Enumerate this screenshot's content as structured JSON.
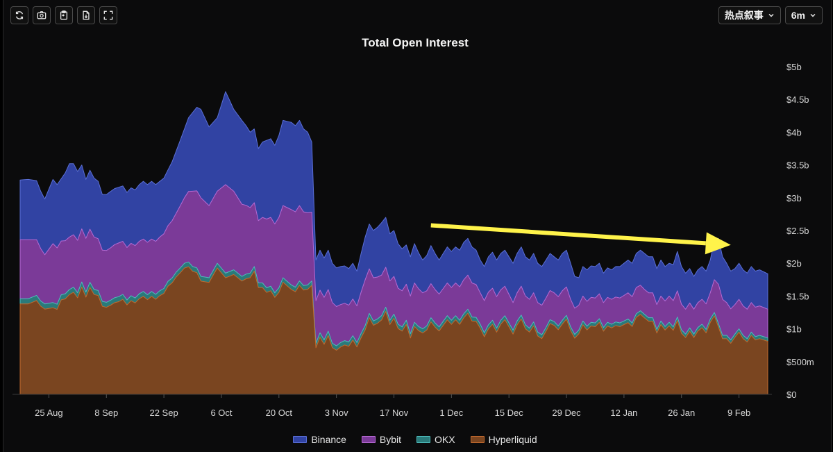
{
  "toolbar": {
    "icons": [
      "refresh-icon",
      "camera-icon",
      "clipboard-icon",
      "download-file-icon",
      "fullscreen-icon"
    ]
  },
  "controls": {
    "narrative_select": "热点叙事",
    "range_select": "6m"
  },
  "chart_data": {
    "type": "area",
    "stacked": true,
    "title": "Total Open Interest",
    "xlabel": "",
    "ylabel": "",
    "ylim": [
      0,
      5000000000
    ],
    "y_ticks": [
      "$0",
      "$500m",
      "$1b",
      "$1.5b",
      "$2b",
      "$2.5b",
      "$3b",
      "$3.5b",
      "$4b",
      "$4.5b",
      "$5b"
    ],
    "x_tick_labels": [
      "25 Aug",
      "8 Sep",
      "22 Sep",
      "6 Oct",
      "20 Oct",
      "3 Nov",
      "17 Nov",
      "1 Dec",
      "15 Dec",
      "29 Dec",
      "12 Jan",
      "26 Jan",
      "9 Feb"
    ],
    "x_tick_day_index": [
      7,
      21,
      35,
      49,
      63,
      77,
      91,
      105,
      119,
      133,
      147,
      161,
      175
    ],
    "day_count": 183,
    "totals_anchors_bn": [
      [
        0,
        3.27
      ],
      [
        2,
        3.28
      ],
      [
        4,
        3.26
      ],
      [
        5,
        3.1
      ],
      [
        6,
        2.98
      ],
      [
        8,
        3.28
      ],
      [
        9,
        3.2
      ],
      [
        11,
        3.38
      ],
      [
        12,
        3.52
      ],
      [
        13,
        3.52
      ],
      [
        14,
        3.4
      ],
      [
        15,
        3.5
      ],
      [
        16,
        3.28
      ],
      [
        17,
        3.42
      ],
      [
        18,
        3.3
      ],
      [
        19,
        3.25
      ],
      [
        20,
        3.05
      ],
      [
        21,
        3.05
      ],
      [
        23,
        3.14
      ],
      [
        25,
        3.18
      ],
      [
        26,
        3.08
      ],
      [
        27,
        3.15
      ],
      [
        28,
        3.12
      ],
      [
        29,
        3.2
      ],
      [
        30,
        3.25
      ],
      [
        31,
        3.2
      ],
      [
        32,
        3.25
      ],
      [
        33,
        3.2
      ],
      [
        34,
        3.25
      ],
      [
        35,
        3.3
      ],
      [
        37,
        3.55
      ],
      [
        39,
        3.88
      ],
      [
        41,
        4.22
      ],
      [
        43,
        4.38
      ],
      [
        44,
        4.35
      ],
      [
        46,
        4.08
      ],
      [
        48,
        4.22
      ],
      [
        50,
        4.62
      ],
      [
        52,
        4.35
      ],
      [
        54,
        4.18
      ],
      [
        55,
        4.1
      ],
      [
        56,
        4.0
      ],
      [
        57,
        4.05
      ],
      [
        58,
        3.75
      ],
      [
        59,
        3.85
      ],
      [
        61,
        3.9
      ],
      [
        62,
        3.8
      ],
      [
        63,
        3.95
      ],
      [
        64,
        4.18
      ],
      [
        66,
        4.15
      ],
      [
        67,
        4.1
      ],
      [
        68,
        4.18
      ],
      [
        69,
        4.05
      ],
      [
        70,
        4.0
      ],
      [
        71,
        3.85
      ],
      [
        72,
        2.05
      ],
      [
        73,
        2.2
      ],
      [
        74,
        2.08
      ],
      [
        75,
        2.2
      ],
      [
        76,
        2.0
      ],
      [
        77,
        1.93
      ],
      [
        78,
        1.95
      ],
      [
        79,
        1.96
      ],
      [
        80,
        1.92
      ],
      [
        81,
        2.0
      ],
      [
        82,
        1.88
      ],
      [
        83,
        2.15
      ],
      [
        84,
        2.4
      ],
      [
        85,
        2.6
      ],
      [
        86,
        2.5
      ],
      [
        87,
        2.55
      ],
      [
        88,
        2.62
      ],
      [
        89,
        2.7
      ],
      [
        90,
        2.45
      ],
      [
        91,
        2.5
      ],
      [
        92,
        2.3
      ],
      [
        93,
        2.22
      ],
      [
        94,
        2.28
      ],
      [
        95,
        2.1
      ],
      [
        96,
        2.3
      ],
      [
        97,
        2.16
      ],
      [
        98,
        2.05
      ],
      [
        99,
        2.12
      ],
      [
        100,
        2.27
      ],
      [
        101,
        2.15
      ],
      [
        102,
        2.05
      ],
      [
        103,
        2.15
      ],
      [
        104,
        2.25
      ],
      [
        105,
        2.18
      ],
      [
        106,
        2.25
      ],
      [
        107,
        2.2
      ],
      [
        108,
        2.32
      ],
      [
        109,
        2.38
      ],
      [
        110,
        2.25
      ],
      [
        111,
        2.2
      ],
      [
        112,
        2.05
      ],
      [
        113,
        1.95
      ],
      [
        114,
        2.1
      ],
      [
        115,
        2.17
      ],
      [
        116,
        2.05
      ],
      [
        117,
        2.15
      ],
      [
        118,
        2.2
      ],
      [
        119,
        2.1
      ],
      [
        120,
        2.0
      ],
      [
        121,
        2.15
      ],
      [
        122,
        2.25
      ],
      [
        123,
        2.1
      ],
      [
        124,
        2.05
      ],
      [
        125,
        2.15
      ],
      [
        126,
        2.0
      ],
      [
        127,
        1.95
      ],
      [
        128,
        2.05
      ],
      [
        129,
        2.15
      ],
      [
        130,
        2.1
      ],
      [
        131,
        2.05
      ],
      [
        132,
        2.15
      ],
      [
        133,
        2.2
      ],
      [
        134,
        2.0
      ],
      [
        135,
        1.8
      ],
      [
        136,
        1.78
      ],
      [
        137,
        1.95
      ],
      [
        138,
        1.9
      ],
      [
        139,
        1.96
      ],
      [
        140,
        1.95
      ],
      [
        141,
        2.0
      ],
      [
        142,
        1.85
      ],
      [
        143,
        1.93
      ],
      [
        144,
        1.9
      ],
      [
        145,
        1.95
      ],
      [
        146,
        1.95
      ],
      [
        147,
        2.0
      ],
      [
        148,
        2.05
      ],
      [
        149,
        2.0
      ],
      [
        150,
        2.15
      ],
      [
        151,
        2.2
      ],
      [
        152,
        2.15
      ],
      [
        153,
        2.1
      ],
      [
        154,
        2.1
      ],
      [
        155,
        1.92
      ],
      [
        156,
        2.05
      ],
      [
        157,
        1.95
      ],
      [
        158,
        2.0
      ],
      [
        159,
        1.98
      ],
      [
        160,
        2.18
      ],
      [
        161,
        1.95
      ],
      [
        162,
        1.85
      ],
      [
        163,
        1.92
      ],
      [
        164,
        1.8
      ],
      [
        165,
        1.9
      ],
      [
        166,
        1.95
      ],
      [
        167,
        1.88
      ],
      [
        168,
        2.05
      ],
      [
        169,
        2.35
      ],
      [
        170,
        2.38
      ],
      [
        171,
        2.1
      ],
      [
        172,
        2.0
      ],
      [
        173,
        1.88
      ],
      [
        174,
        1.92
      ],
      [
        175,
        2.0
      ],
      [
        176,
        1.9
      ],
      [
        177,
        1.85
      ],
      [
        178,
        1.95
      ],
      [
        179,
        1.88
      ],
      [
        180,
        1.9
      ],
      [
        181,
        1.87
      ],
      [
        182,
        1.84
      ]
    ],
    "series": [
      {
        "name": "Binance",
        "color": "#3143a3",
        "stroke": "#5a6fd6",
        "anchors_bn": [
          [
            0,
            0.91
          ],
          [
            2,
            0.92
          ],
          [
            4,
            0.9
          ],
          [
            6,
            0.85
          ],
          [
            8,
            0.98
          ],
          [
            10,
            0.95
          ],
          [
            12,
            1.12
          ],
          [
            14,
            1.05
          ],
          [
            16,
            0.9
          ],
          [
            18,
            0.9
          ],
          [
            20,
            0.85
          ],
          [
            22,
            0.86
          ],
          [
            24,
            0.85
          ],
          [
            26,
            0.84
          ],
          [
            28,
            0.85
          ],
          [
            30,
            0.88
          ],
          [
            32,
            0.88
          ],
          [
            34,
            0.85
          ],
          [
            36,
            0.85
          ],
          [
            38,
            0.95
          ],
          [
            40,
            1.05
          ],
          [
            42,
            1.2
          ],
          [
            44,
            1.35
          ],
          [
            46,
            1.2
          ],
          [
            48,
            1.12
          ],
          [
            50,
            1.42
          ],
          [
            52,
            1.25
          ],
          [
            54,
            1.28
          ],
          [
            56,
            1.15
          ],
          [
            58,
            1.1
          ],
          [
            60,
            1.2
          ],
          [
            62,
            1.2
          ],
          [
            64,
            1.3
          ],
          [
            66,
            1.33
          ],
          [
            68,
            1.3
          ],
          [
            70,
            1.23
          ],
          [
            71,
            1.07
          ],
          [
            72,
            0.62
          ],
          [
            74,
            0.6
          ],
          [
            76,
            0.6
          ],
          [
            78,
            0.58
          ],
          [
            80,
            0.56
          ],
          [
            82,
            0.53
          ],
          [
            84,
            0.65
          ],
          [
            86,
            0.72
          ],
          [
            88,
            0.8
          ],
          [
            90,
            0.72
          ],
          [
            92,
            0.68
          ],
          [
            94,
            0.6
          ],
          [
            96,
            0.6
          ],
          [
            98,
            0.5
          ],
          [
            100,
            0.58
          ],
          [
            102,
            0.52
          ],
          [
            104,
            0.55
          ],
          [
            106,
            0.55
          ],
          [
            108,
            0.57
          ],
          [
            110,
            0.55
          ],
          [
            112,
            0.5
          ],
          [
            114,
            0.54
          ],
          [
            116,
            0.56
          ],
          [
            118,
            0.55
          ],
          [
            120,
            0.6
          ],
          [
            122,
            0.6
          ],
          [
            124,
            0.6
          ],
          [
            126,
            0.6
          ],
          [
            128,
            0.58
          ],
          [
            130,
            0.55
          ],
          [
            132,
            0.57
          ],
          [
            134,
            0.55
          ],
          [
            136,
            0.42
          ],
          [
            138,
            0.48
          ],
          [
            140,
            0.48
          ],
          [
            142,
            0.45
          ],
          [
            144,
            0.45
          ],
          [
            146,
            0.48
          ],
          [
            148,
            0.5
          ],
          [
            150,
            0.52
          ],
          [
            152,
            0.55
          ],
          [
            154,
            0.55
          ],
          [
            156,
            0.55
          ],
          [
            158,
            0.5
          ],
          [
            160,
            0.6
          ],
          [
            162,
            0.55
          ],
          [
            164,
            0.5
          ],
          [
            166,
            0.5
          ],
          [
            168,
            0.5
          ],
          [
            170,
            0.7
          ],
          [
            172,
            0.6
          ],
          [
            174,
            0.55
          ],
          [
            176,
            0.55
          ],
          [
            178,
            0.55
          ],
          [
            180,
            0.55
          ],
          [
            182,
            0.54
          ]
        ]
      },
      {
        "name": "Bybit",
        "color": "#7b3a98",
        "stroke": "#b66ad3",
        "anchors_bn": [
          [
            0,
            0.9
          ],
          [
            2,
            0.9
          ],
          [
            4,
            0.85
          ],
          [
            6,
            0.75
          ],
          [
            8,
            0.9
          ],
          [
            10,
            0.82
          ],
          [
            12,
            0.8
          ],
          [
            14,
            0.8
          ],
          [
            16,
            0.82
          ],
          [
            18,
            0.8
          ],
          [
            20,
            0.78
          ],
          [
            22,
            0.8
          ],
          [
            24,
            0.82
          ],
          [
            26,
            0.8
          ],
          [
            28,
            0.8
          ],
          [
            30,
            0.8
          ],
          [
            32,
            0.8
          ],
          [
            34,
            0.82
          ],
          [
            36,
            0.85
          ],
          [
            38,
            0.9
          ],
          [
            40,
            1.0
          ],
          [
            42,
            1.15
          ],
          [
            44,
            1.2
          ],
          [
            46,
            1.1
          ],
          [
            48,
            1.1
          ],
          [
            50,
            1.35
          ],
          [
            52,
            1.2
          ],
          [
            54,
            1.1
          ],
          [
            56,
            1.0
          ],
          [
            58,
            0.95
          ],
          [
            60,
            1.05
          ],
          [
            62,
            1.05
          ],
          [
            64,
            1.1
          ],
          [
            66,
            1.15
          ],
          [
            68,
            1.15
          ],
          [
            70,
            1.1
          ],
          [
            71,
            1.05
          ],
          [
            72,
            0.65
          ],
          [
            74,
            0.65
          ],
          [
            76,
            0.62
          ],
          [
            78,
            0.58
          ],
          [
            80,
            0.56
          ],
          [
            82,
            0.56
          ],
          [
            84,
            0.7
          ],
          [
            86,
            0.66
          ],
          [
            88,
            0.62
          ],
          [
            90,
            0.6
          ],
          [
            92,
            0.55
          ],
          [
            94,
            0.55
          ],
          [
            96,
            0.6
          ],
          [
            98,
            0.55
          ],
          [
            100,
            0.52
          ],
          [
            102,
            0.5
          ],
          [
            104,
            0.5
          ],
          [
            106,
            0.5
          ],
          [
            108,
            0.52
          ],
          [
            110,
            0.52
          ],
          [
            112,
            0.48
          ],
          [
            114,
            0.5
          ],
          [
            116,
            0.48
          ],
          [
            118,
            0.45
          ],
          [
            120,
            0.42
          ],
          [
            122,
            0.44
          ],
          [
            124,
            0.44
          ],
          [
            126,
            0.45
          ],
          [
            128,
            0.45
          ],
          [
            130,
            0.44
          ],
          [
            132,
            0.45
          ],
          [
            134,
            0.42
          ],
          [
            136,
            0.38
          ],
          [
            138,
            0.38
          ],
          [
            140,
            0.38
          ],
          [
            142,
            0.38
          ],
          [
            144,
            0.38
          ],
          [
            146,
            0.38
          ],
          [
            148,
            0.4
          ],
          [
            150,
            0.4
          ],
          [
            152,
            0.38
          ],
          [
            154,
            0.38
          ],
          [
            156,
            0.38
          ],
          [
            158,
            0.4
          ],
          [
            160,
            0.4
          ],
          [
            162,
            0.38
          ],
          [
            164,
            0.38
          ],
          [
            166,
            0.38
          ],
          [
            168,
            0.4
          ],
          [
            170,
            0.6
          ],
          [
            172,
            0.5
          ],
          [
            174,
            0.45
          ],
          [
            176,
            0.45
          ],
          [
            178,
            0.45
          ],
          [
            180,
            0.45
          ],
          [
            182,
            0.44
          ]
        ]
      },
      {
        "name": "OKX",
        "color": "#2a7a7a",
        "stroke": "#4ebcbc",
        "anchors_bn": [
          [
            0,
            0.08
          ],
          [
            182,
            0.05
          ]
        ]
      },
      {
        "name": "Hyperliquid",
        "color": "#7a4520",
        "stroke": "#c26a2e"
      }
    ],
    "annotations": [
      {
        "type": "arrow",
        "color": "#fff34a",
        "from_day": 100,
        "from_value_bn": 2.58,
        "to_day": 173,
        "to_value_bn": 2.28,
        "meaning": "downward trend"
      }
    ]
  }
}
